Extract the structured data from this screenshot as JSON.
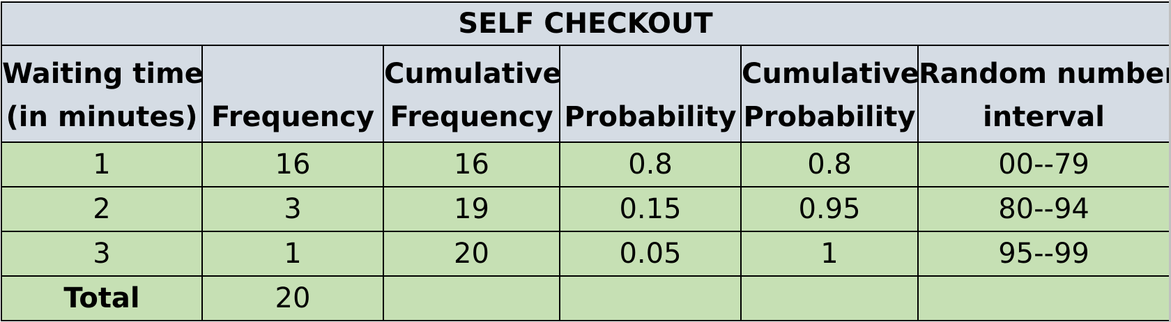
{
  "table": {
    "title": "SELF CHECKOUT",
    "headers": [
      {
        "line1": "Waiting time",
        "line2": "(in minutes)"
      },
      {
        "line1": "",
        "line2": "Frequency"
      },
      {
        "line1": "Cumulative",
        "line2": "Frequency"
      },
      {
        "line1": "",
        "line2": "Probability"
      },
      {
        "line1": "Cumulative",
        "line2": "Probability"
      },
      {
        "line1": "Random number",
        "line2": "interval"
      }
    ],
    "rows": [
      [
        "1",
        "16",
        "16",
        "0.8",
        "0.8",
        "00--79"
      ],
      [
        "2",
        "3",
        "19",
        "0.15",
        "0.95",
        "80--94"
      ],
      [
        "3",
        "1",
        "20",
        "0.05",
        "1",
        "95--99"
      ]
    ],
    "total_row": [
      "Total",
      "20",
      "",
      "",
      "",
      ""
    ]
  },
  "colors": {
    "header_fill": "#d5dce4",
    "data_fill": "#c6e0b4",
    "border": "#000000"
  }
}
